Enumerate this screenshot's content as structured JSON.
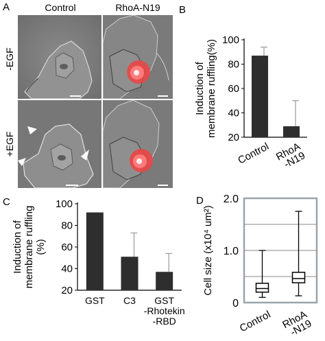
{
  "figure": {
    "panels": {
      "a": "A",
      "b": "B",
      "c": "C",
      "d": "D"
    },
    "micrographs": {
      "col_control": "Control",
      "col_rhoa": "RhoA-N19",
      "row_minus_egf": "-EGF",
      "row_plus_egf": "+EGF"
    }
  },
  "chart_data": [
    {
      "type": "bar",
      "panel": "B",
      "categories": [
        "Control",
        "RhoA\n-N19"
      ],
      "values": [
        87,
        29
      ],
      "errors": [
        7,
        21
      ],
      "ylabel": "Induction of\nmembrane ruffling(%)",
      "ylim": [
        20,
        100
      ],
      "yticks": [
        20,
        40,
        60,
        80,
        100
      ],
      "bar_color": "#2e2e2e",
      "grid": false
    },
    {
      "type": "bar",
      "panel": "C",
      "categories": [
        "GST",
        "C3",
        "GST\n-Rhotekin\n-RBD"
      ],
      "values": [
        92,
        51,
        37
      ],
      "errors": [
        0,
        22,
        17
      ],
      "ylabel": "Induction of\nmembrane ruffling\n(%)",
      "ylim": [
        20,
        100
      ],
      "yticks": [
        20,
        40,
        60,
        80,
        100
      ],
      "bar_color": "#2e2e2e",
      "grid": false
    },
    {
      "type": "box",
      "panel": "D",
      "categories": [
        "Control",
        "RhoA\n-N19"
      ],
      "boxes": [
        {
          "min": 0.1,
          "q1": 0.2,
          "median": 0.27,
          "q3": 0.37,
          "max": 1.0
        },
        {
          "min": 0.13,
          "q1": 0.38,
          "median": 0.46,
          "q3": 0.58,
          "max": 1.75
        }
      ],
      "ylabel": "Cell size (x10⁴ um²)",
      "ylim": [
        0,
        2.0
      ],
      "yticks": [
        "0",
        "1.0",
        "2.0"
      ],
      "grid": true
    }
  ]
}
